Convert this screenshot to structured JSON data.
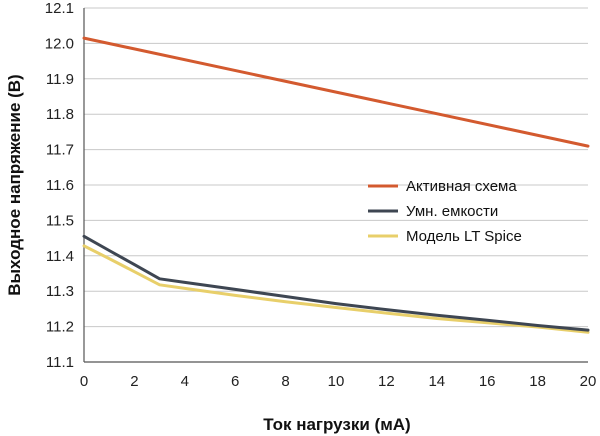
{
  "chart_data": {
    "type": "line",
    "title": "",
    "xlabel": "Ток нагрузки (мА)",
    "ylabel": "Выходное напряжение (В)",
    "xlim": [
      0,
      20
    ],
    "ylim": [
      11.1,
      12.1
    ],
    "x_ticks": [
      "0",
      "2",
      "4",
      "6",
      "8",
      "10",
      "12",
      "14",
      "16",
      "18",
      "20"
    ],
    "y_ticks": [
      "11.1",
      "11.2",
      "11.3",
      "11.4",
      "11.5",
      "11.6",
      "11.7",
      "11.8",
      "11.9",
      "12.0",
      "12.1"
    ],
    "grid": "horizontal",
    "legend_position": "right",
    "series": [
      {
        "name": "Активная схема",
        "color": "#d35a2f",
        "x": [
          0,
          20
        ],
        "y": [
          12.015,
          11.71
        ]
      },
      {
        "name": "Умн. емкости",
        "color": "#3e4652",
        "x": [
          0,
          1,
          2,
          3,
          4,
          6,
          8,
          10,
          12,
          14,
          16,
          18,
          20
        ],
        "y": [
          11.455,
          11.415,
          11.375,
          11.335,
          11.325,
          11.305,
          11.285,
          11.265,
          11.248,
          11.232,
          11.218,
          11.203,
          11.19
        ]
      },
      {
        "name": "Модель LT Spice",
        "color": "#e8cf6a",
        "x": [
          0,
          1,
          2,
          3,
          4,
          6,
          8,
          10,
          12,
          14,
          16,
          18,
          20
        ],
        "y": [
          11.428,
          11.392,
          11.355,
          11.318,
          11.308,
          11.288,
          11.27,
          11.254,
          11.238,
          11.223,
          11.211,
          11.199,
          11.184
        ]
      }
    ]
  }
}
